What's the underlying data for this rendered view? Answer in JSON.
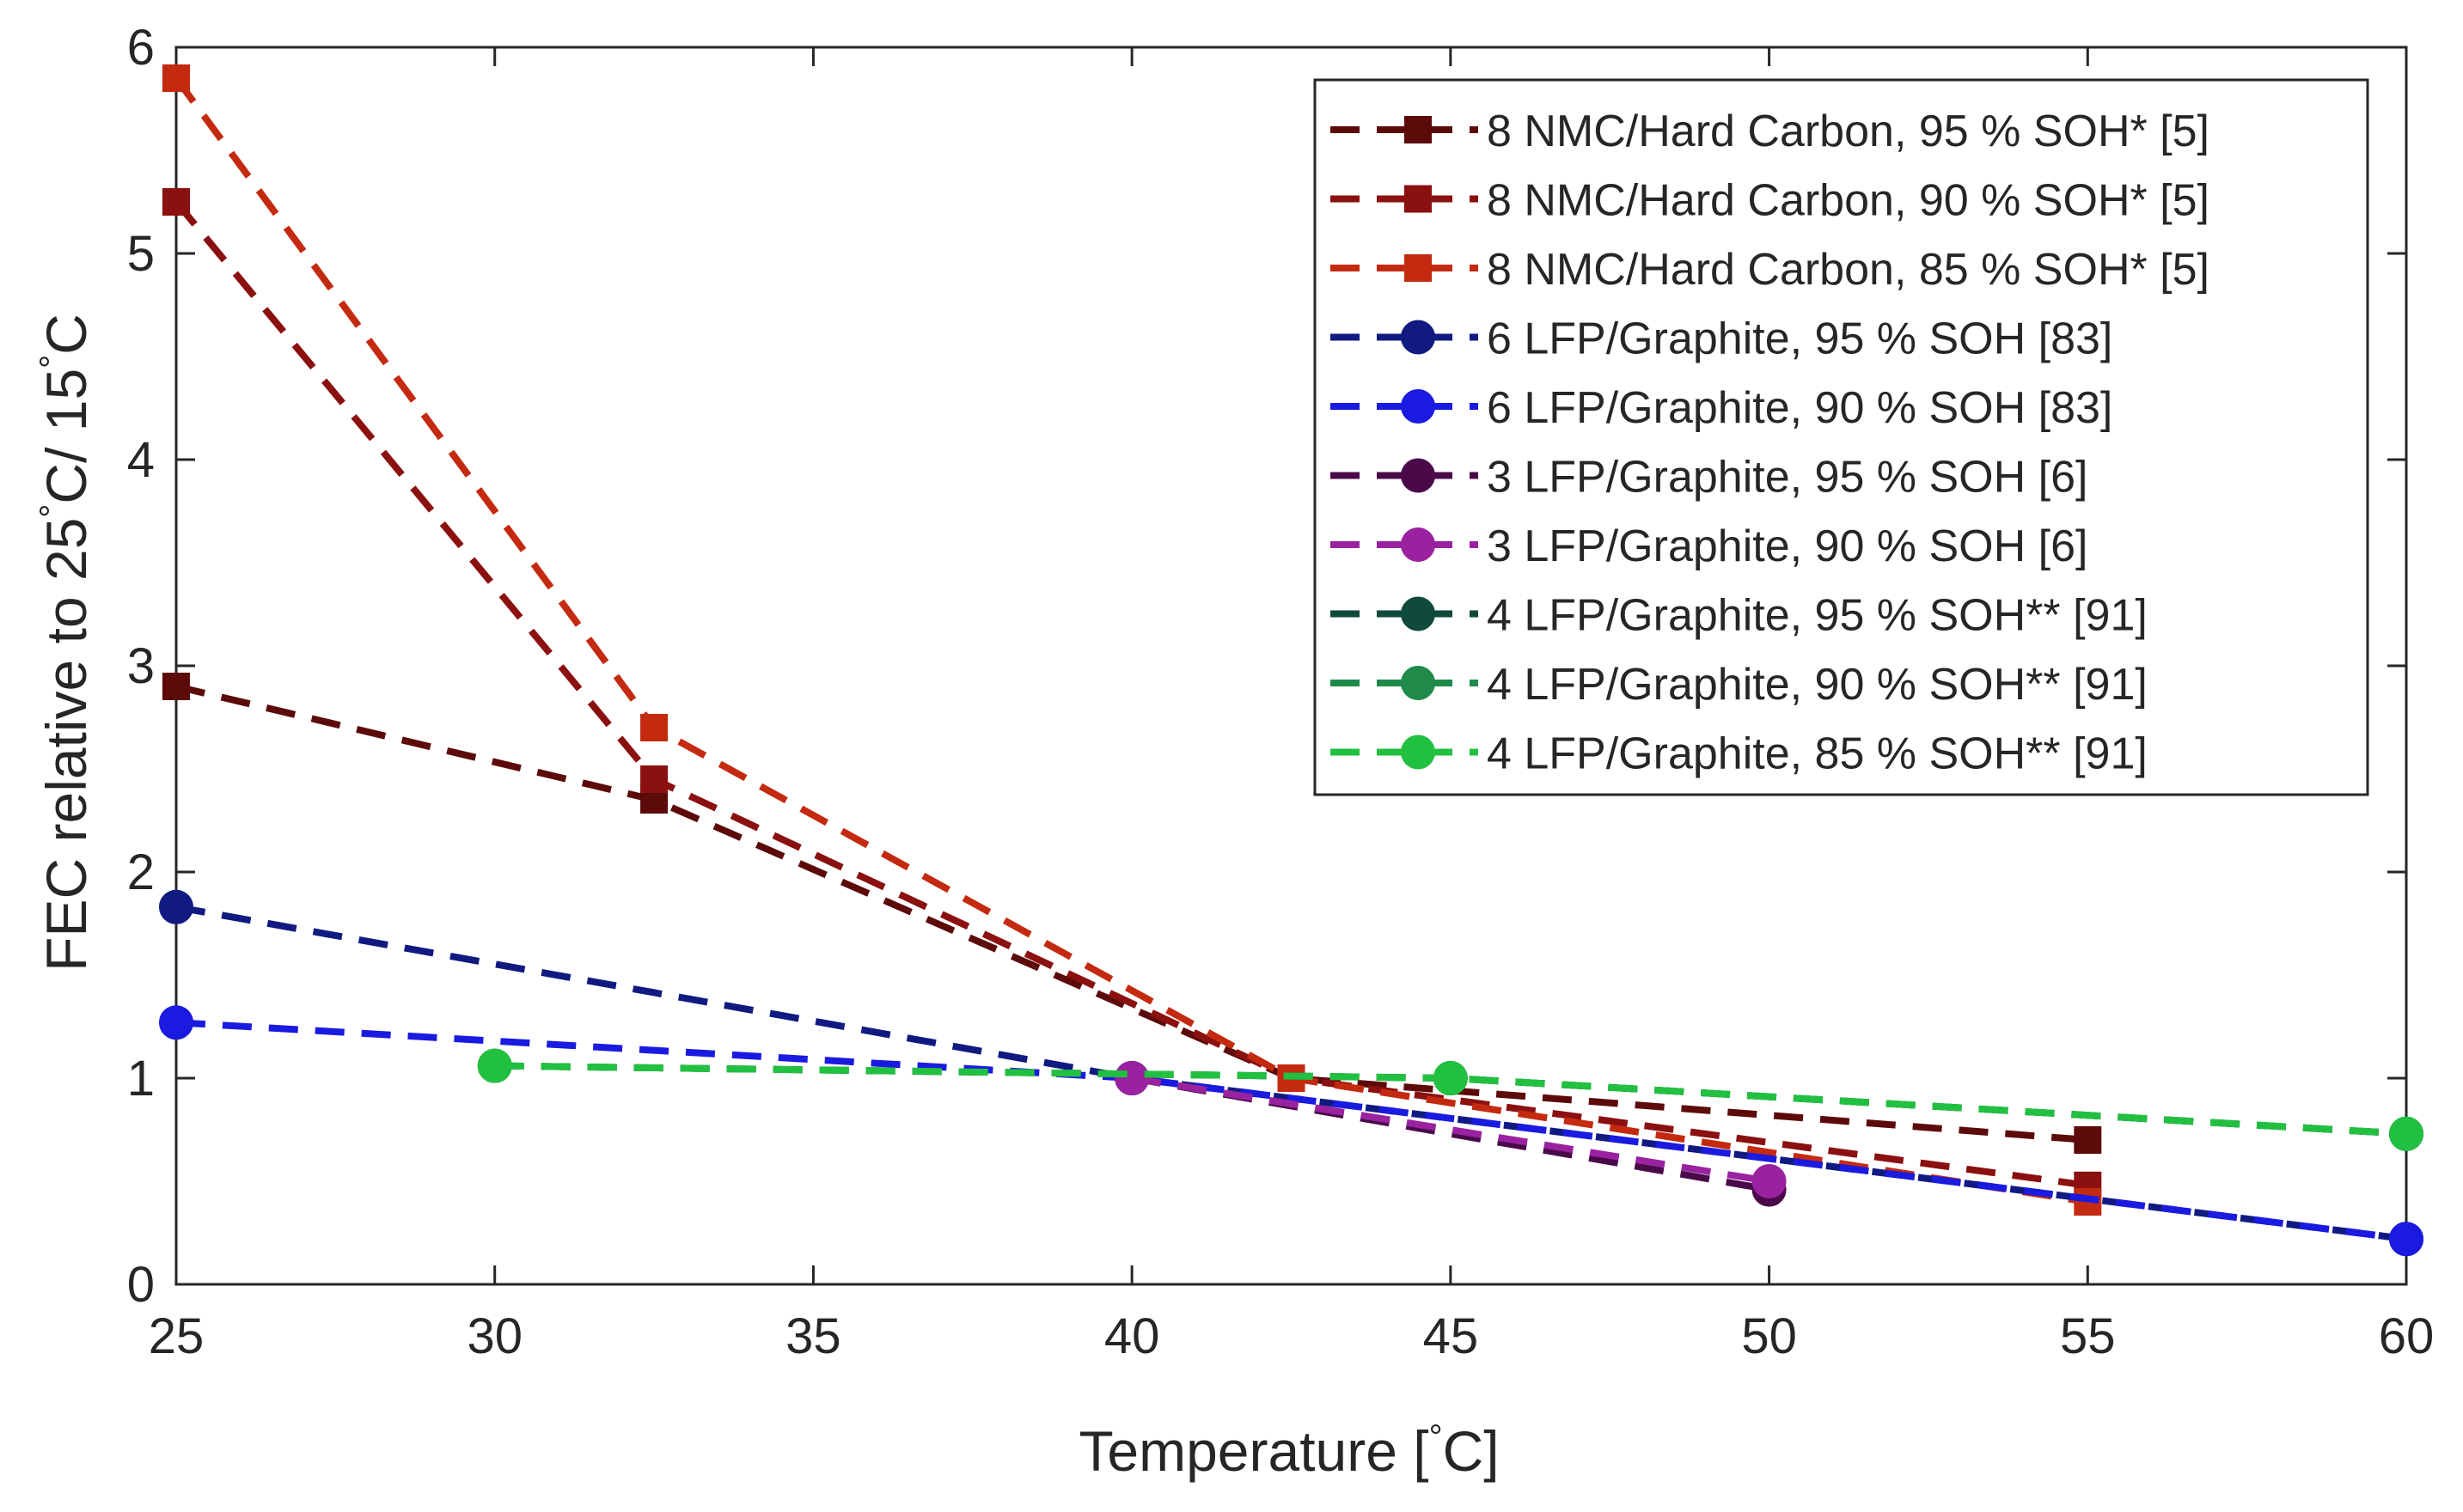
{
  "chart_data": {
    "type": "line",
    "title": "",
    "xlabel": {
      "pre": "Temperature [",
      "deg": "°",
      "post": "C]"
    },
    "ylabel": {
      "p1": "FEC relative to 25",
      "deg1": "°",
      "p2": "C/ 15",
      "deg2": "°",
      "p3": "C"
    },
    "xlim": [
      25,
      60
    ],
    "ylim": [
      0,
      6
    ],
    "xticks": [
      25,
      30,
      35,
      40,
      45,
      50,
      55,
      60
    ],
    "yticks": [
      0,
      1,
      2,
      3,
      4,
      5,
      6
    ],
    "xtick_labels": [
      "25",
      "30",
      "35",
      "40",
      "45",
      "50",
      "55",
      "60"
    ],
    "ytick_labels": [
      "0",
      "1",
      "2",
      "3",
      "4",
      "5",
      "6"
    ],
    "grid": false,
    "legend_position": "top-right",
    "series": [
      {
        "name": "8 NMC/Hard Carbon, 95 % SOH* [5]",
        "color": "#5c0a0a",
        "marker": "square",
        "x": [
          25,
          32.5,
          42.5,
          55
        ],
        "y": [
          2.9,
          2.35,
          1.0,
          0.7
        ]
      },
      {
        "name": "8 NMC/Hard Carbon, 90 % SOH* [5]",
        "color": "#8b1010",
        "marker": "square",
        "x": [
          25,
          32.5,
          42.5,
          55
        ],
        "y": [
          5.25,
          2.45,
          1.0,
          0.48
        ]
      },
      {
        "name": "8 NMC/Hard Carbon, 85 % SOH* [5]",
        "color": "#c42a10",
        "marker": "square",
        "x": [
          25,
          32.5,
          42.5,
          55
        ],
        "y": [
          5.85,
          2.7,
          1.0,
          0.4
        ]
      },
      {
        "name": "6 LFP/Graphite, 95 % SOH [83]",
        "color": "#111a80",
        "marker": "circle",
        "x": [
          25,
          40,
          60
        ],
        "y": [
          1.83,
          1.0,
          0.22
        ]
      },
      {
        "name": "6 LFP/Graphite, 90 % SOH [83]",
        "color": "#1a1ae0",
        "marker": "circle",
        "x": [
          25,
          40,
          60
        ],
        "y": [
          1.27,
          1.0,
          0.22
        ]
      },
      {
        "name": "3 LFP/Graphite, 95 % SOH [6]",
        "color": "#4a0a4a",
        "marker": "circle",
        "x": [
          40,
          50
        ],
        "y": [
          1.0,
          0.46
        ]
      },
      {
        "name": "3 LFP/Graphite, 90 % SOH [6]",
        "color": "#9a22a0",
        "marker": "circle",
        "x": [
          40,
          50
        ],
        "y": [
          1.0,
          0.5
        ]
      },
      {
        "name": "4 LFP/Graphite, 95 % SOH** [91]",
        "color": "#0f4a3a",
        "marker": "circle",
        "x": [
          30,
          45,
          60
        ],
        "y": [
          1.06,
          1.0,
          0.73
        ]
      },
      {
        "name": "4 LFP/Graphite, 90 % SOH** [91]",
        "color": "#1f8a4a",
        "marker": "circle",
        "x": [
          30,
          45,
          60
        ],
        "y": [
          1.06,
          1.0,
          0.73
        ]
      },
      {
        "name": "4 LFP/Graphite, 85 % SOH** [91]",
        "color": "#22c040",
        "marker": "circle",
        "x": [
          30,
          45,
          60
        ],
        "y": [
          1.06,
          1.0,
          0.73
        ]
      }
    ]
  }
}
